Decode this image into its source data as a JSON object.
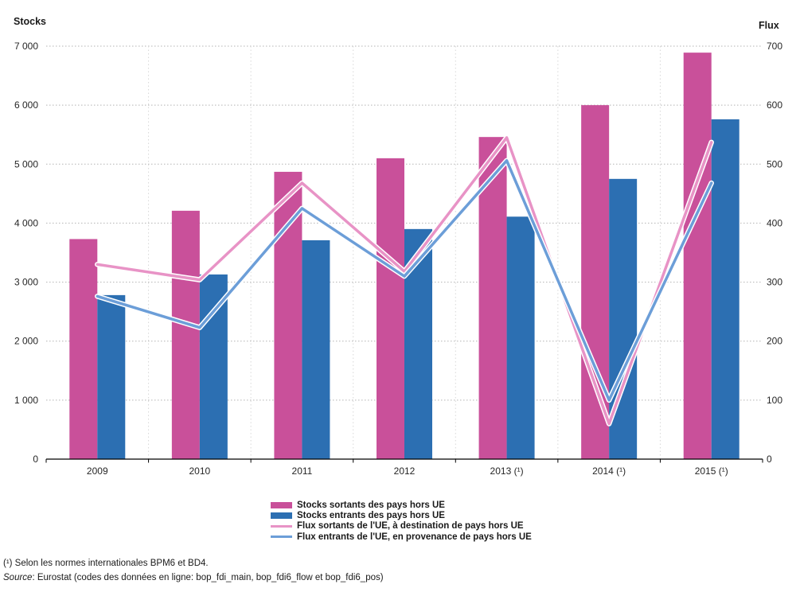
{
  "chart_data": {
    "type": "bar",
    "subtype": "grouped bars with overlaid lines (dual axis)",
    "categories": [
      "2009",
      "2010",
      "2011",
      "2012",
      "2013 (¹)",
      "2014 (¹)",
      "2015 (¹)"
    ],
    "series": [
      {
        "name": "Stocks sortants des pays hors UE",
        "type": "bar",
        "axis": "left",
        "color": "#c9509a",
        "values": [
          3730,
          4210,
          4870,
          5100,
          5460,
          6000,
          6890
        ]
      },
      {
        "name": "Stocks entrants des pays hors UE",
        "type": "bar",
        "axis": "left",
        "color": "#2c6fb2",
        "values": [
          2780,
          3130,
          3710,
          3900,
          4110,
          4750,
          5760
        ]
      },
      {
        "name": "Flux sortants de l'UE, à destination de pays hors UE",
        "type": "line",
        "axis": "right",
        "color": "#e893c6",
        "values": [
          330,
          304,
          468,
          318,
          545,
          60,
          537
        ]
      },
      {
        "name": "Flux entrants de l'UE, en provenance de pays hors UE",
        "type": "line",
        "axis": "right",
        "color": "#6c9ed8",
        "values": [
          276,
          223,
          425,
          310,
          506,
          100,
          468
        ]
      }
    ],
    "left_axis": {
      "title": "Stocks",
      "min": 0,
      "max": 7000,
      "tick_step": 1000,
      "tick_labels": [
        "0",
        "1 000",
        "2 000",
        "3 000",
        "4 000",
        "5 000",
        "6 000",
        "7 000"
      ]
    },
    "right_axis": {
      "title": "Flux",
      "min": 0,
      "max": 700,
      "tick_step": 100,
      "tick_labels": [
        "0",
        "100",
        "200",
        "300",
        "400",
        "500",
        "600",
        "700"
      ]
    },
    "grid": {
      "horizontal": "dotted",
      "vertical": "faint dotted at category boundaries"
    },
    "legend_position": "bottom-center",
    "colors": {
      "grid": "#b3b3b3",
      "grid_vertical": "#d8d8d8",
      "axis_line": "#000000"
    }
  },
  "footnotes": {
    "note": "(¹) Selon les normes internationales BPM6 et BD4.",
    "source_label": "Source",
    "source_text": ": Eurostat (codes des données en ligne: bop_fdi_main, bop_fdi6_flow et bop_fdi6_pos)"
  }
}
